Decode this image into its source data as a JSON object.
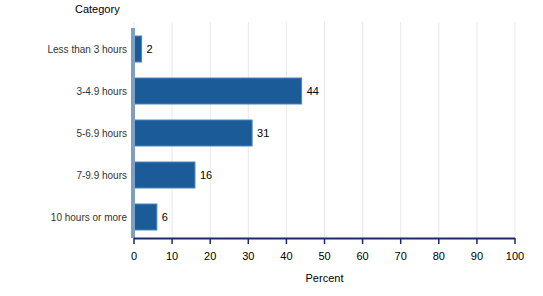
{
  "chart_data": {
    "type": "bar",
    "orientation": "horizontal",
    "ylabel": "Category",
    "xlabel": "Percent",
    "categories": [
      "Less than 3 hours",
      "3-4.9 hours",
      "5-6.9 hours",
      "7-9.9 hours",
      "10 hours or more"
    ],
    "values": [
      2,
      44,
      31,
      16,
      6
    ],
    "color": "#1b5b98",
    "xlim": [
      0,
      100
    ],
    "xticks": [
      0,
      10,
      20,
      30,
      40,
      50,
      60,
      70,
      80,
      90,
      100
    ],
    "grid": true,
    "data_labels": true
  }
}
